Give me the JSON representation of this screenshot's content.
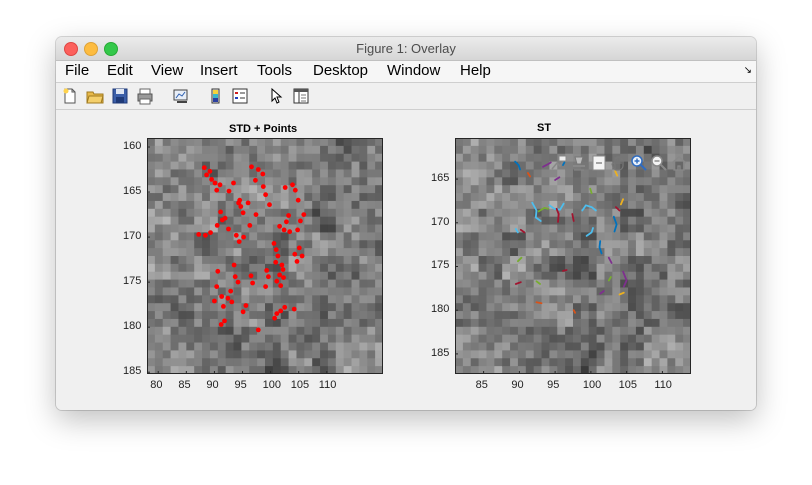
{
  "window": {
    "title": "Figure 1: Overlay"
  },
  "menu": [
    "File",
    "Edit",
    "View",
    "Insert",
    "Tools",
    "Desktop",
    "Window",
    "Help"
  ],
  "menu_overflow_icon": "arrow-icon",
  "toolbar_icons": [
    "new-figure-icon",
    "open-file-icon",
    "save-icon",
    "print-icon",
    "link-plot-icon",
    "colorbar-icon",
    "legend-icon",
    "pointer-icon",
    "property-inspector-icon"
  ],
  "axes_toolbar_icons": [
    "data-tips-icon",
    "brush-icon",
    "restore-view-icon",
    "pan-icon",
    "zoom-in-icon",
    "zoom-out-icon",
    "home-icon"
  ],
  "colors": {
    "points": "#ff0000",
    "tracks": [
      "#0072bd",
      "#d95319",
      "#edb120",
      "#7e2f8e",
      "#77ac30",
      "#4dbeee",
      "#a2142f"
    ]
  },
  "chart_data": [
    {
      "type": "scatter",
      "title": "STD + Points",
      "background": "grayscale image",
      "xticks": [
        80,
        85,
        90,
        95,
        100,
        105,
        110
      ],
      "yticks": [
        160,
        165,
        170,
        175,
        180,
        185
      ],
      "xlim": [
        78,
        120
      ],
      "ylim": [
        159,
        185.2
      ],
      "y_reversed": true,
      "series": [
        {
          "color": "#ff0000",
          "points": [
            [
              88.2,
              162.3
            ],
            [
              88.6,
              163.1
            ],
            [
              89.2,
              162.7
            ],
            [
              89.5,
              163.6
            ],
            [
              90.1,
              164.0
            ],
            [
              90.4,
              164.8
            ],
            [
              91.0,
              164.2
            ],
            [
              92.6,
              164.9
            ],
            [
              93.4,
              164.0
            ],
            [
              94.3,
              166.2
            ],
            [
              94.7,
              166.6
            ],
            [
              95.1,
              167.3
            ],
            [
              94.5,
              165.9
            ],
            [
              91.1,
              167.2
            ],
            [
              91.4,
              168.1
            ],
            [
              91.9,
              167.9
            ],
            [
              90.5,
              168.7
            ],
            [
              89.3,
              169.5
            ],
            [
              88.4,
              169.8
            ],
            [
              87.2,
              169.7
            ],
            [
              92.5,
              169.1
            ],
            [
              93.9,
              169.8
            ],
            [
              94.4,
              170.5
            ],
            [
              95.2,
              170.0
            ],
            [
              96.3,
              168.7
            ],
            [
              97.4,
              167.5
            ],
            [
              96.0,
              166.2
            ],
            [
              99.1,
              165.3
            ],
            [
              99.8,
              166.4
            ],
            [
              98.7,
              164.4
            ],
            [
              97.3,
              163.7
            ],
            [
              97.8,
              162.5
            ],
            [
              98.6,
              163.0
            ],
            [
              96.6,
              162.2
            ],
            [
              102.6,
              164.5
            ],
            [
              103.9,
              164.2
            ],
            [
              104.4,
              164.8
            ],
            [
              104.9,
              165.9
            ],
            [
              103.2,
              167.6
            ],
            [
              102.8,
              168.3
            ],
            [
              101.6,
              168.8
            ],
            [
              102.4,
              169.2
            ],
            [
              103.4,
              169.4
            ],
            [
              104.8,
              169.2
            ],
            [
              105.3,
              168.2
            ],
            [
              105.9,
              167.5
            ],
            [
              100.6,
              170.7
            ],
            [
              101.0,
              171.4
            ],
            [
              101.3,
              172.1
            ],
            [
              100.9,
              172.8
            ],
            [
              102.0,
              173.1
            ],
            [
              102.2,
              173.6
            ],
            [
              101.6,
              174.2
            ],
            [
              101.1,
              174.9
            ],
            [
              101.8,
              175.4
            ],
            [
              102.3,
              174.5
            ],
            [
              104.3,
              171.9
            ],
            [
              104.7,
              172.7
            ],
            [
              105.1,
              171.2
            ],
            [
              105.6,
              172.1
            ],
            [
              99.3,
              173.7
            ],
            [
              99.6,
              174.4
            ],
            [
              99.1,
              175.5
            ],
            [
              96.5,
              174.3
            ],
            [
              96.8,
              175.1
            ],
            [
              93.5,
              173.1
            ],
            [
              93.7,
              174.4
            ],
            [
              94.2,
              175.0
            ],
            [
              90.6,
              173.8
            ],
            [
              90.4,
              175.5
            ],
            [
              91.3,
              176.6
            ],
            [
              92.4,
              176.8
            ],
            [
              92.9,
              176.0
            ],
            [
              93.1,
              177.2
            ],
            [
              91.6,
              177.7
            ],
            [
              90.0,
              177.1
            ],
            [
              95.1,
              178.3
            ],
            [
              95.6,
              177.6
            ],
            [
              101.1,
              178.5
            ],
            [
              101.8,
              178.2
            ],
            [
              102.5,
              177.8
            ],
            [
              104.2,
              178.0
            ],
            [
              100.7,
              179.0
            ],
            [
              97.8,
              180.3
            ],
            [
              91.2,
              179.7
            ],
            [
              91.8,
              179.3
            ]
          ]
        }
      ]
    },
    {
      "type": "line",
      "title": "ST",
      "background": "grayscale image",
      "xticks": [
        85,
        90,
        95,
        100,
        105,
        110
      ],
      "yticks": [
        165,
        170,
        175,
        180,
        185
      ],
      "xlim": [
        81,
        114
      ],
      "ylim": [
        160.3,
        187.3
      ],
      "y_reversed": true,
      "series": [
        {
          "color": "#4dbeee",
          "points": [
            [
              91.8,
              167.7
            ],
            [
              92.4,
              168.6
            ],
            [
              92.3,
              169.4
            ],
            [
              93.0,
              169.8
            ]
          ]
        },
        {
          "color": "#4dbeee",
          "points": [
            [
              94.2,
              168.0
            ],
            [
              94.9,
              168.4
            ],
            [
              95.7,
              168.5
            ],
            [
              96.2,
              167.8
            ]
          ]
        },
        {
          "color": "#4dbeee",
          "points": [
            [
              98.8,
              168.6
            ],
            [
              99.3,
              168.0
            ],
            [
              100.1,
              168.2
            ],
            [
              100.7,
              168.6
            ]
          ]
        },
        {
          "color": "#4dbeee",
          "points": [
            [
              99.4,
              171.5
            ],
            [
              100.1,
              171.1
            ],
            [
              100.3,
              170.6
            ]
          ]
        },
        {
          "color": "#4dbeee",
          "points": [
            [
              89.5,
              170.7
            ],
            [
              89.8,
              171.1
            ]
          ]
        },
        {
          "color": "#0072bd",
          "points": [
            [
              89.4,
              163.0
            ],
            [
              89.9,
              163.4
            ],
            [
              90.1,
              163.9
            ]
          ]
        },
        {
          "color": "#0072bd",
          "points": [
            [
              101.3,
              172.1
            ],
            [
              101.2,
              172.8
            ],
            [
              101.5,
              173.5
            ]
          ]
        },
        {
          "color": "#0072bd",
          "points": [
            [
              103.2,
              169.3
            ],
            [
              103.6,
              170.2
            ],
            [
              103.3,
              171.0
            ]
          ]
        },
        {
          "color": "#d95319",
          "points": [
            [
              91.2,
              164.3
            ],
            [
              91.5,
              164.7
            ]
          ]
        },
        {
          "color": "#d95319",
          "points": [
            [
              97.8,
              180.3
            ],
            [
              97.6,
              180.0
            ]
          ]
        },
        {
          "color": "#d95319",
          "points": [
            [
              92.4,
              179.1
            ],
            [
              93.1,
              179.2
            ]
          ]
        },
        {
          "color": "#edb120",
          "points": [
            [
              103.4,
              164.1
            ],
            [
              103.7,
              164.6
            ]
          ]
        },
        {
          "color": "#edb120",
          "points": [
            [
              104.0,
              178.2
            ],
            [
              104.6,
              178.0
            ]
          ]
        },
        {
          "color": "#7e2f8e",
          "points": [
            [
              93.3,
              163.6
            ],
            [
              94.0,
              163.3
            ],
            [
              94.4,
              163.1
            ]
          ]
        },
        {
          "color": "#7e2f8e",
          "points": [
            [
              95.0,
              165.1
            ],
            [
              95.6,
              164.8
            ]
          ]
        },
        {
          "color": "#7e2f8e",
          "points": [
            [
              102.5,
              174.0
            ],
            [
              102.9,
              174.6
            ]
          ]
        },
        {
          "color": "#7e2f8e",
          "points": [
            [
              101.3,
              178.1
            ],
            [
              101.8,
              177.8
            ]
          ]
        },
        {
          "color": "#7e2f8e",
          "points": [
            [
              104.5,
              175.6
            ],
            [
              105.0,
              176.6
            ],
            [
              104.6,
              177.3
            ]
          ]
        },
        {
          "color": "#77ac30",
          "points": [
            [
              99.9,
              166.1
            ],
            [
              100.1,
              166.6
            ]
          ]
        },
        {
          "color": "#77ac30",
          "points": [
            [
              92.7,
              168.7
            ],
            [
              93.5,
              168.3
            ],
            [
              94.0,
              168.4
            ]
          ]
        },
        {
          "color": "#77ac30",
          "points": [
            [
              89.8,
              174.4
            ],
            [
              90.3,
              174.0
            ]
          ]
        },
        {
          "color": "#77ac30",
          "points": [
            [
              102.5,
              176.6
            ],
            [
              102.8,
              176.2
            ]
          ]
        },
        {
          "color": "#77ac30",
          "points": [
            [
              92.4,
              176.7
            ],
            [
              92.9,
              177.0
            ]
          ]
        },
        {
          "color": "#a2142f",
          "points": [
            [
              95.2,
              168.4
            ],
            [
              95.5,
              169.0
            ],
            [
              95.4,
              169.9
            ]
          ]
        },
        {
          "color": "#a2142f",
          "points": [
            [
              97.4,
              169.0
            ],
            [
              97.6,
              169.8
            ]
          ]
        },
        {
          "color": "#a2142f",
          "points": [
            [
              103.5,
              168.2
            ],
            [
              104.0,
              168.6
            ]
          ]
        },
        {
          "color": "#a2142f",
          "points": [
            [
              90.2,
              170.8
            ],
            [
              90.7,
              171.1
            ]
          ]
        },
        {
          "color": "#a2142f",
          "points": [
            [
              96.1,
              175.5
            ],
            [
              96.6,
              175.4
            ]
          ]
        },
        {
          "color": "#a2142f",
          "points": [
            [
              89.5,
              177.0
            ],
            [
              90.2,
              176.8
            ]
          ]
        },
        {
          "color": "#0072bd",
          "points": [
            [
              96.1,
              163.4
            ],
            [
              96.3,
              163.1
            ]
          ]
        },
        {
          "color": "#edb120",
          "points": [
            [
              104.2,
              167.9
            ],
            [
              104.5,
              167.3
            ]
          ]
        }
      ]
    }
  ]
}
